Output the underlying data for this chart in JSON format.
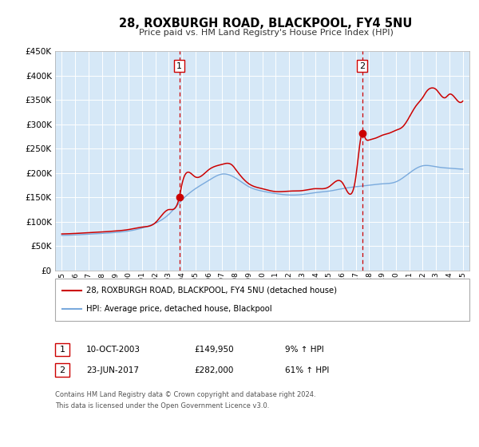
{
  "title": "28, ROXBURGH ROAD, BLACKPOOL, FY4 5NU",
  "subtitle": "Price paid vs. HM Land Registry's House Price Index (HPI)",
  "legend_line1": "28, ROXBURGH ROAD, BLACKPOOL, FY4 5NU (detached house)",
  "legend_line2": "HPI: Average price, detached house, Blackpool",
  "sale1_date": "10-OCT-2003",
  "sale1_price": "£149,950",
  "sale1_pct": "9% ↑ HPI",
  "sale2_date": "23-JUN-2017",
  "sale2_price": "£282,000",
  "sale2_pct": "61% ↑ HPI",
  "footer1": "Contains HM Land Registry data © Crown copyright and database right 2024.",
  "footer2": "This data is licensed under the Open Government Licence v3.0.",
  "red_color": "#cc0000",
  "blue_color": "#7aaadd",
  "marker1_x": 2003.79,
  "marker1_y": 149950,
  "marker2_x": 2017.48,
  "marker2_y": 282000,
  "vline1_x": 2003.79,
  "vline2_x": 2017.48,
  "ylim": [
    0,
    450000
  ],
  "xlim_start": 1994.5,
  "xlim_end": 2025.5,
  "plot_bg": "#d6e8f7",
  "grid_color": "#ffffff",
  "spine_color": "#aaaaaa"
}
